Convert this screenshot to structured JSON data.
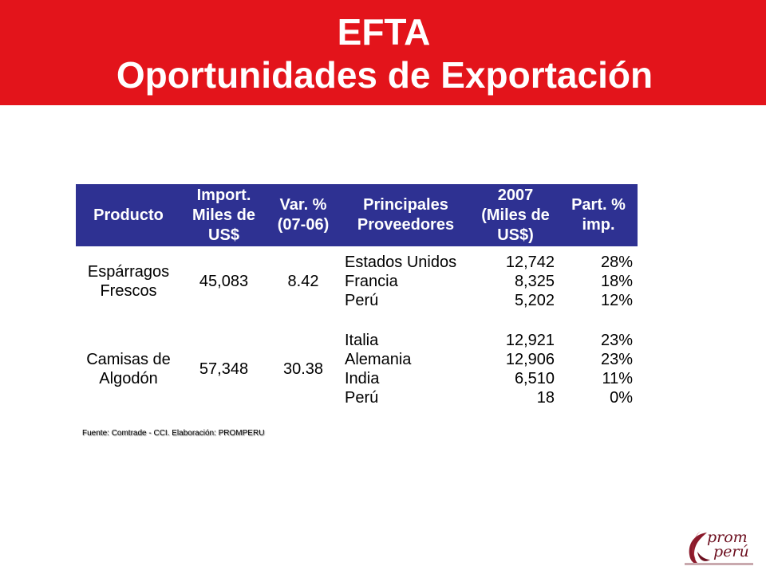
{
  "header": {
    "title_line1": "EFTA",
    "title_line2": "Oportunidades de Exportación"
  },
  "table": {
    "columns": [
      [
        "Producto"
      ],
      [
        "Import.",
        "Miles de",
        "US$"
      ],
      [
        "Var. %",
        "(07-06)"
      ],
      [
        "Principales",
        "Proveedores"
      ],
      [
        "2007",
        "(Miles de",
        "US$)"
      ],
      [
        "Part. %",
        "imp."
      ]
    ],
    "products": [
      {
        "name_lines": [
          "Espárragos",
          "Frescos"
        ],
        "import": "45,083",
        "var": "8.42",
        "suppliers": [
          {
            "country": "Estados Unidos",
            "value": "12,742",
            "share": "28%"
          },
          {
            "country": "Francia",
            "value": "8,325",
            "share": "18%"
          },
          {
            "country": "Perú",
            "value": "5,202",
            "share": "12%"
          }
        ]
      },
      {
        "name_lines": [
          "Camisas de",
          "Algodón"
        ],
        "import": "57,348",
        "var": "30.38",
        "suppliers": [
          {
            "country": "Italia",
            "value": "12,921",
            "share": "23%"
          },
          {
            "country": "Alemania",
            "value": "12,906",
            "share": "23%"
          },
          {
            "country": "India",
            "value": "6,510",
            "share": "11%"
          },
          {
            "country": "Perú",
            "value": "18",
            "share": "0%"
          }
        ]
      }
    ]
  },
  "source": "Fuente: Comtrade - CCI.  Elaboración: PROMPERU",
  "logo": {
    "word1": "prom",
    "word2": "perú",
    "icon": "promperu-swirl-logo"
  },
  "colors": {
    "banner": "#e3141b",
    "table_header": "#2e3192",
    "logo": "#6d1020"
  }
}
